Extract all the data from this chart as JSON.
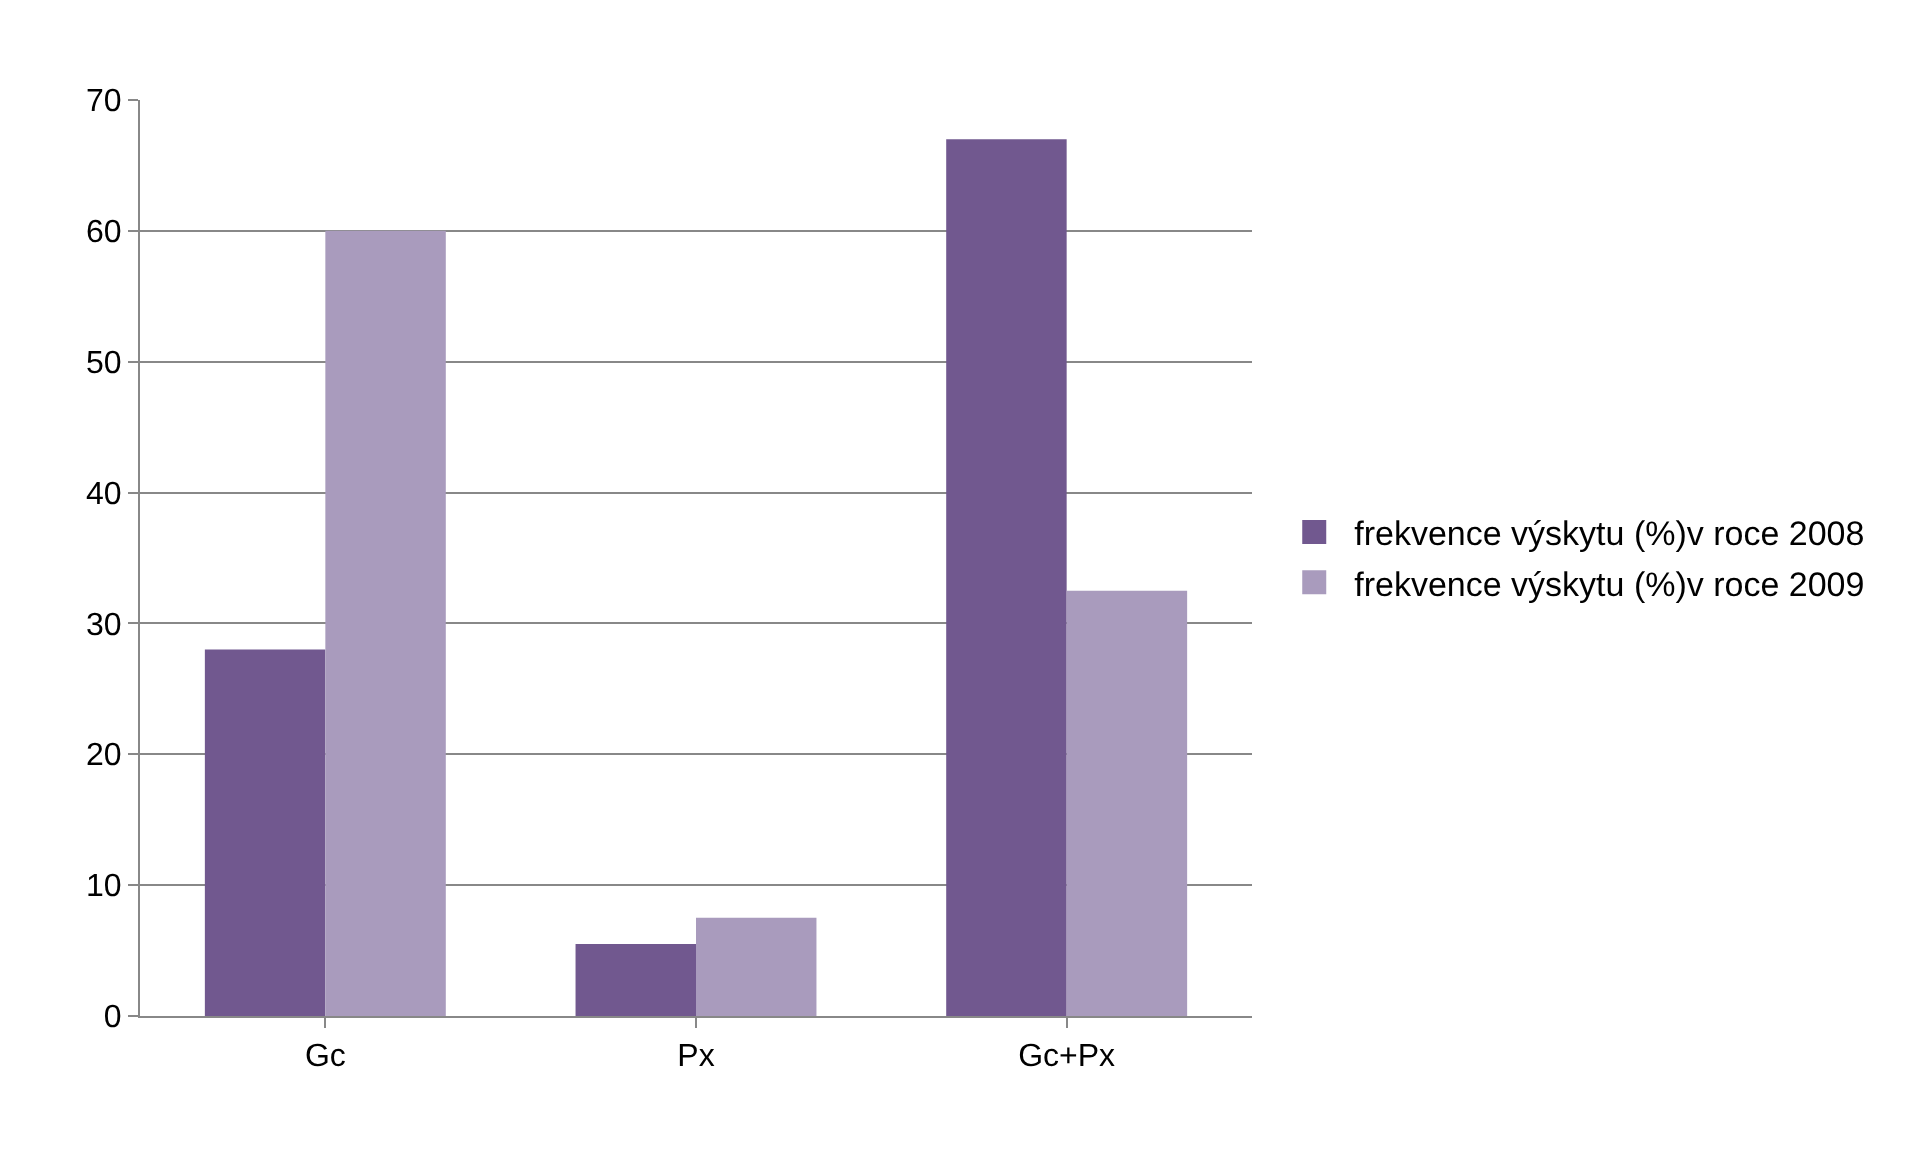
{
  "chart_data": {
    "type": "bar",
    "categories": [
      "Gc",
      "Px",
      "Gc+Px"
    ],
    "series": [
      {
        "name": "frekvence výskytu (%)v roce 2008",
        "color": "#71588f",
        "values": [
          28,
          5.5,
          67
        ]
      },
      {
        "name": "frekvence výskytu (%)v roce 2009",
        "color": "#a99bbd",
        "values": [
          60,
          7.5,
          32.5
        ]
      }
    ],
    "ylim": [
      0,
      70
    ],
    "yticks": [
      0,
      10,
      20,
      30,
      40,
      50,
      60,
      70
    ],
    "grid": "y",
    "legend": "right"
  }
}
